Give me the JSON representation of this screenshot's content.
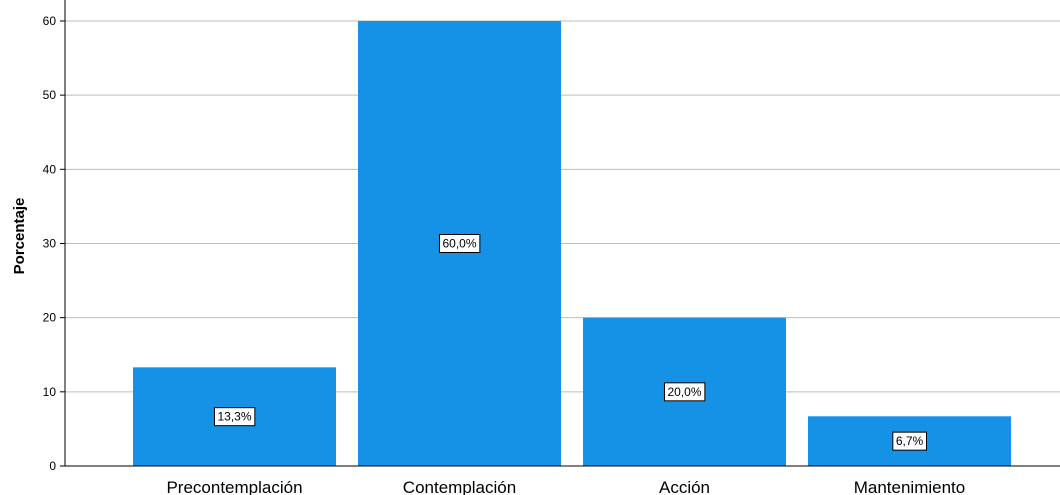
{
  "chart_data": {
    "type": "bar",
    "title": "",
    "xlabel": "",
    "ylabel": "Porcentaje",
    "categories": [
      "Precontemplación",
      "Contemplación",
      "Acción",
      "Mantenimiento"
    ],
    "values": [
      13.3,
      60.0,
      20.0,
      6.7
    ],
    "data_labels": [
      "13,3%",
      "60,0%",
      "20,0%",
      "6,7%"
    ],
    "ylim": [
      0,
      63
    ],
    "yticks": [
      0,
      10,
      20,
      30,
      40,
      50,
      60
    ],
    "grid": true,
    "legend": "none",
    "colors": {
      "bar": "#1591e6",
      "grid": "#bdbdbd",
      "axis": "#000000"
    }
  }
}
